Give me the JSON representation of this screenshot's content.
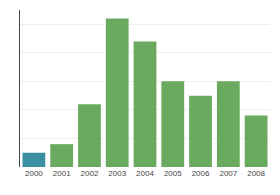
{
  "chart_data": {
    "type": "bar",
    "categories": [
      "2000",
      "2001",
      "2002",
      "2003",
      "2004",
      "2005",
      "2006",
      "2007",
      "2008"
    ],
    "values": [
      5,
      8,
      22,
      52,
      44,
      30,
      25,
      30,
      18
    ],
    "colors": [
      "#3a8fa3",
      "#6aaa5e",
      "#6aaa5e",
      "#6aaa5e",
      "#6aaa5e",
      "#6aaa5e",
      "#6aaa5e",
      "#6aaa5e",
      "#6aaa5e"
    ],
    "ylim": [
      0,
      55
    ],
    "yticks": [
      0,
      10,
      20,
      30,
      40,
      50
    ],
    "grid": true,
    "tick_labels": "x"
  }
}
